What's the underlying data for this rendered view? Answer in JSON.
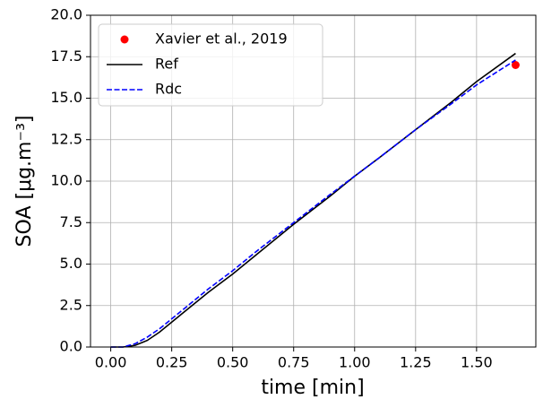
{
  "chart_data": {
    "type": "line",
    "x_label": "time [min]",
    "y_label": "SOA [μg.m⁻³]",
    "xlim": [
      -0.083,
      1.743
    ],
    "ylim": [
      0,
      20
    ],
    "xticks": [
      {
        "value": 0,
        "label": "0.00"
      },
      {
        "value": 0.25,
        "label": "0.25"
      },
      {
        "value": 0.5,
        "label": "0.50"
      },
      {
        "value": 0.75,
        "label": "0.75"
      },
      {
        "value": 1,
        "label": "1.00"
      },
      {
        "value": 1.25,
        "label": "1.25"
      },
      {
        "value": 1.5,
        "label": "1.50"
      }
    ],
    "yticks": [
      {
        "value": 0,
        "label": "0.0"
      },
      {
        "value": 2.5,
        "label": "2.5"
      },
      {
        "value": 5,
        "label": "5.0"
      },
      {
        "value": 7.5,
        "label": "7.5"
      },
      {
        "value": 10,
        "label": "10.0"
      },
      {
        "value": 12.5,
        "label": "12.5"
      },
      {
        "value": 15,
        "label": "15.0"
      },
      {
        "value": 17.5,
        "label": "17.5"
      },
      {
        "value": 20,
        "label": "20.0"
      }
    ],
    "grid": true,
    "legend": "upper left",
    "series": [
      {
        "name": "Xavier et al., 2019",
        "color": "#ff0000",
        "style": "marker",
        "x": [
          1.66
        ],
        "values": [
          17.0
        ]
      },
      {
        "name": "Ref",
        "color": "#000000",
        "style": "solid",
        "x": [
          0,
          0.05,
          0.1,
          0.15,
          0.2,
          0.25,
          0.3,
          0.4,
          0.5,
          0.6,
          0.75,
          0.9,
          1.0,
          1.1,
          1.25,
          1.4,
          1.5,
          1.66
        ],
        "values": [
          0,
          0,
          0.1,
          0.4,
          0.9,
          1.5,
          2.1,
          3.3,
          4.4,
          5.6,
          7.4,
          9.1,
          10.3,
          11.4,
          13.1,
          14.8,
          16.0,
          17.7
        ]
      },
      {
        "name": "Rdc",
        "color": "#0000ff",
        "style": "dashed",
        "x": [
          0,
          0.05,
          0.1,
          0.15,
          0.2,
          0.25,
          0.3,
          0.4,
          0.5,
          0.6,
          0.75,
          0.9,
          1.0,
          1.1,
          1.25,
          1.4,
          1.5,
          1.66
        ],
        "values": [
          0,
          0,
          0.2,
          0.6,
          1.1,
          1.7,
          2.3,
          3.5,
          4.6,
          5.8,
          7.5,
          9.2,
          10.3,
          11.4,
          13.1,
          14.7,
          15.8,
          17.3
        ]
      }
    ]
  }
}
